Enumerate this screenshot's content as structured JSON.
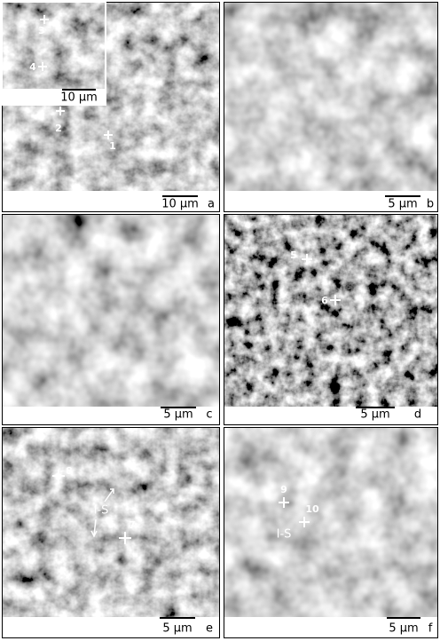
{
  "panels": [
    {
      "label": "a",
      "scale_label": "10 μm",
      "points": [
        "1",
        "2"
      ],
      "inset": {
        "scale_label": "10 μm",
        "points": [
          "3",
          "4"
        ]
      }
    },
    {
      "label": "b",
      "scale_label": "5 μm"
    },
    {
      "label": "c",
      "scale_label": "5 μm"
    },
    {
      "label": "d",
      "scale_label": "5 μm",
      "points": [
        "5",
        "6"
      ]
    },
    {
      "label": "e",
      "scale_label": "5 μm",
      "points": [
        "8",
        "7"
      ],
      "annotations": [
        "I-S"
      ]
    },
    {
      "label": "f",
      "scale_label": "5 μm",
      "points": [
        "9",
        "10"
      ],
      "annotations": [
        "I-S"
      ]
    }
  ]
}
